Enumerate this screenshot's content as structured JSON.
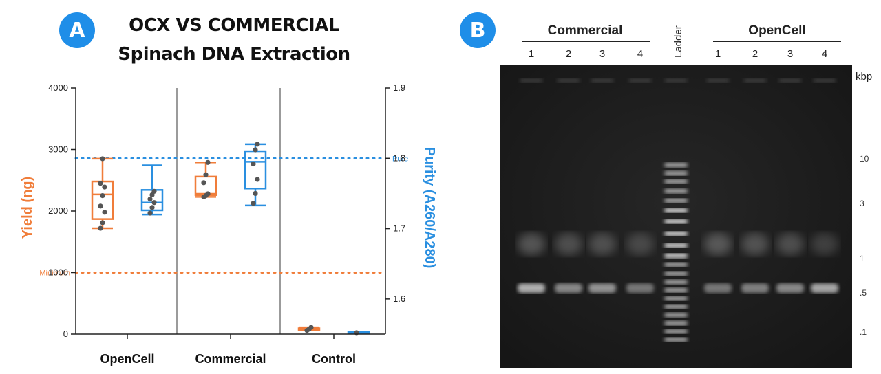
{
  "panel_a": {
    "badge": "A",
    "title_line1": "OCX VS COMMERCIAL",
    "title_line2": "Spinach DNA Extraction"
  },
  "panel_b": {
    "badge": "B",
    "group_left": "Commercial",
    "group_right": "OpenCell",
    "ladder_label": "Ladder",
    "lanes_left": [
      "1",
      "2",
      "3",
      "4"
    ],
    "lanes_right": [
      "1",
      "2",
      "3",
      "4"
    ],
    "unit": "kbp",
    "ladder_marks": [
      "10",
      "3",
      "1",
      ".5",
      ".1"
    ]
  },
  "colors": {
    "yield": "#f07d3a",
    "purity": "#2a8fe0",
    "badge": "#1f8ee8",
    "point": "#555555"
  },
  "chart_data": {
    "type": "box",
    "title": "OCX VS COMMERCIAL Spinach DNA Extraction",
    "categories": [
      "OpenCell",
      "Commercial",
      "Control"
    ],
    "left_axis": {
      "label": "Yield (ng)",
      "ylim": [
        0,
        4000
      ],
      "ticks": [
        "0",
        "1000",
        "2000",
        "3000",
        "4000"
      ]
    },
    "right_axis": {
      "label": "Purity (A260/A280)",
      "ylim": [
        1.55,
        1.9
      ],
      "ticks": [
        "1.6",
        "1.7",
        "1.8",
        "1.9"
      ]
    },
    "reference_lines": [
      {
        "label": "Minimum",
        "axis": "left",
        "value": 1000,
        "color": "#f07d3a"
      },
      {
        "label": "Pure",
        "axis": "right",
        "value": 1.8,
        "color": "#2a8fe0"
      }
    ],
    "series": [
      {
        "name": "Yield (ng)",
        "axis": "left",
        "boxes": [
          {
            "category": "OpenCell",
            "min": 1720,
            "q1": 1870,
            "median": 2270,
            "q3": 2480,
            "max": 2850,
            "points": [
              1720,
              1810,
              1980,
              2080,
              2250,
              2390,
              2450,
              2850
            ]
          },
          {
            "category": "Commercial",
            "min": 2230,
            "q1": 2260,
            "median": 2280,
            "q3": 2560,
            "max": 2790,
            "points": [
              2230,
              2250,
              2280,
              2460,
              2590,
              2790
            ]
          },
          {
            "category": "Control",
            "min": 60,
            "q1": 70,
            "median": 80,
            "q3": 95,
            "max": 110,
            "points": [
              60,
              80,
              110
            ]
          }
        ]
      },
      {
        "name": "Purity (A260/A280)",
        "axis": "right",
        "boxes": [
          {
            "category": "OpenCell",
            "min": 1.72,
            "q1": 1.726,
            "median": 1.737,
            "q3": 1.755,
            "max": 1.79,
            "points": [
              1.722,
              1.73,
              1.737,
              1.742,
              1.748,
              1.753
            ]
          },
          {
            "category": "Commercial",
            "min": 1.733,
            "q1": 1.757,
            "median": 1.795,
            "q3": 1.81,
            "max": 1.82,
            "points": [
              1.736,
              1.75,
              1.77,
              1.792,
              1.812,
              1.82
            ]
          },
          {
            "category": "Control",
            "min": 1.551,
            "q1": 1.551,
            "median": 1.552,
            "q3": 1.553,
            "max": 1.553,
            "points": [
              1.552
            ]
          }
        ]
      }
    ]
  }
}
